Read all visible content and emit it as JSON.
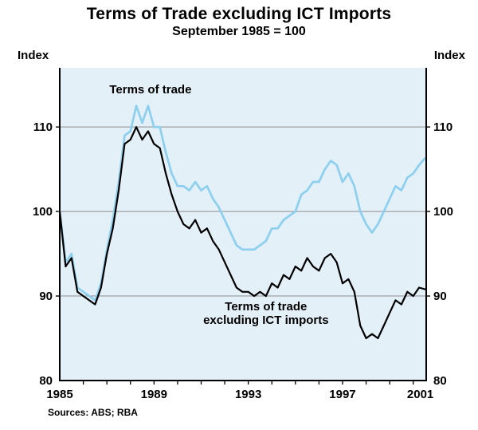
{
  "page": {
    "title": "Terms of Trade excluding ICT Imports",
    "subtitle": "September 1985 = 100",
    "sources": "Sources: ABS; RBA"
  },
  "chart_data": {
    "type": "line",
    "title": "Terms of Trade excluding ICT Imports",
    "subtitle": "September 1985 = 100",
    "y_axis_label": "Index",
    "grid": true,
    "plot_bg": "#e4f0f7",
    "grid_color": "#8c8c8c",
    "xlim": [
      1985.75,
      2001.3
    ],
    "ylim": [
      80,
      117
    ],
    "y_ticks": [
      80,
      90,
      100,
      110
    ],
    "x_tick_labels": [
      "1985",
      "1989",
      "1993",
      "1997",
      "2001"
    ],
    "x_tick_positions": [
      1985.75,
      1989.75,
      1993.75,
      1997.75,
      2001.05
    ],
    "x": [
      1985.75,
      1986,
      1986.25,
      1986.5,
      1986.75,
      1987,
      1987.25,
      1987.5,
      1987.75,
      1988,
      1988.25,
      1988.5,
      1988.75,
      1989,
      1989.25,
      1989.5,
      1989.75,
      1990,
      1990.25,
      1990.5,
      1990.75,
      1991,
      1991.25,
      1991.5,
      1991.75,
      1992,
      1992.25,
      1992.5,
      1992.75,
      1993,
      1993.25,
      1993.5,
      1993.75,
      1994,
      1994.25,
      1994.5,
      1994.75,
      1995,
      1995.25,
      1995.5,
      1995.75,
      1996,
      1996.25,
      1996.5,
      1996.75,
      1997,
      1997.25,
      1997.5,
      1997.75,
      1998,
      1998.25,
      1998.5,
      1998.75,
      1999,
      1999.25,
      1999.5,
      1999.75,
      2000,
      2000.25,
      2000.5,
      2000.75,
      2001,
      2001.25
    ],
    "series": [
      {
        "id": "terms-of-trade",
        "name": "Terms of trade",
        "color": "#8ccfee",
        "values": [
          100,
          94,
          95,
          91,
          90.5,
          90,
          89.5,
          91.5,
          95.5,
          99,
          103.5,
          109,
          109.5,
          112.5,
          110.5,
          112.5,
          110,
          110,
          107,
          104.5,
          103,
          103,
          102.5,
          103.5,
          102.5,
          103,
          101.5,
          100.5,
          99,
          97.5,
          96,
          95.5,
          95.5,
          95.5,
          96,
          96.5,
          98,
          98,
          99,
          99.5,
          100,
          102,
          102.5,
          103.5,
          103.5,
          105,
          106,
          105.5,
          103.5,
          104.5,
          103,
          100,
          98.5,
          97.5,
          98.5,
          100,
          101.5,
          103,
          102.5,
          104,
          104.5,
          105.5,
          106.3
        ]
      },
      {
        "id": "terms-of-trade-excluding-ict",
        "name": "Terms of trade excluding ICT imports",
        "color": "#000000",
        "values": [
          100,
          93.5,
          94.5,
          90.5,
          90,
          89.5,
          89,
          91,
          95,
          98,
          102.5,
          108,
          108.5,
          110,
          108.5,
          109.5,
          108,
          107.5,
          104.5,
          102,
          100,
          98.5,
          98,
          99,
          97.5,
          98,
          96.5,
          95.5,
          94,
          92.5,
          91,
          90.5,
          90.5,
          90,
          90.5,
          90,
          91.5,
          91,
          92.5,
          92,
          93.5,
          93,
          94.5,
          93.5,
          93,
          94.5,
          95,
          94,
          91.5,
          92,
          90.5,
          86.5,
          85,
          85.5,
          85,
          86.5,
          88,
          89.5,
          89,
          90.5,
          90,
          91,
          90.8
        ]
      }
    ],
    "annotations": [
      {
        "id": "terms-of-trade-label",
        "lines": [
          "Terms of trade"
        ],
        "x": 1989.6,
        "y": 114
      },
      {
        "id": "excluding-ict-label",
        "lines": [
          "Terms of trade",
          "excluding ICT imports"
        ],
        "x": 1994.5,
        "y": 88.3
      }
    ]
  }
}
